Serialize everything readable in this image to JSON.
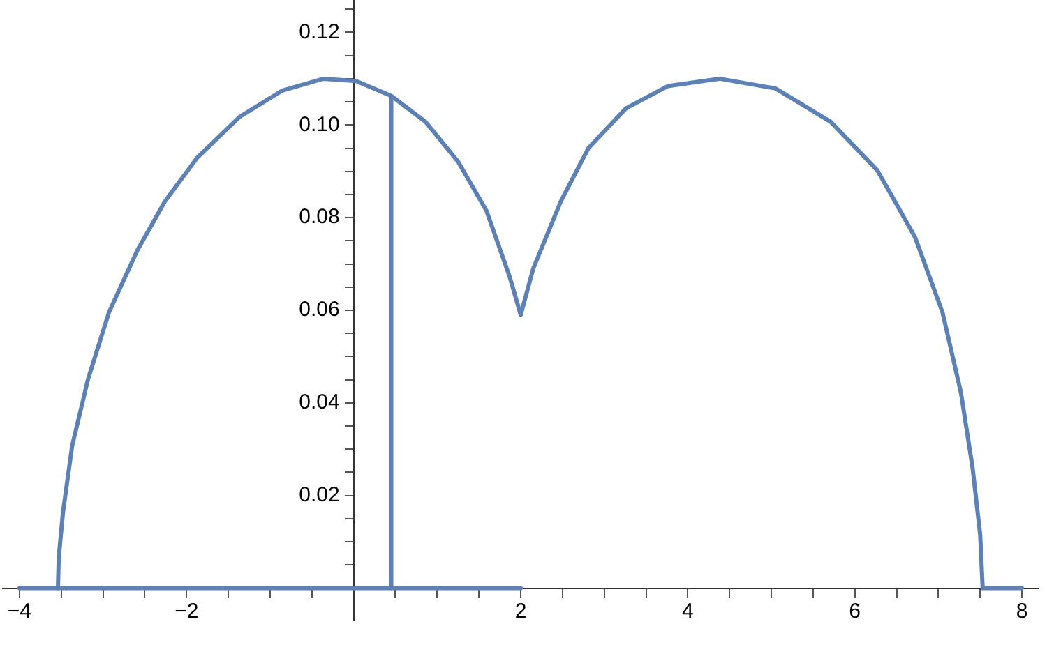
{
  "chart_data": {
    "type": "line",
    "grid": false,
    "legend": false,
    "marker": "none",
    "line_style": "solid",
    "xlim": [
      -4.2,
      8.2
    ],
    "ylim": [
      -0.007,
      0.127
    ],
    "xticks": [
      {
        "value": -4,
        "label": "−4"
      },
      {
        "value": -3.5,
        "label": null
      },
      {
        "value": -3,
        "label": null
      },
      {
        "value": -2.5,
        "label": null
      },
      {
        "value": -2,
        "label": "−2"
      },
      {
        "value": -1.5,
        "label": null
      },
      {
        "value": -1,
        "label": null
      },
      {
        "value": -0.5,
        "label": null
      },
      {
        "value": 0.5,
        "label": null
      },
      {
        "value": 1,
        "label": null
      },
      {
        "value": 1.5,
        "label": null
      },
      2,
      {
        "value": 2.5,
        "label": null
      },
      {
        "value": 3,
        "label": null
      },
      {
        "value": 3.5,
        "label": null
      },
      4,
      {
        "value": 4.5,
        "label": null
      },
      {
        "value": 5,
        "label": null
      },
      {
        "value": 5.5,
        "label": null
      },
      6,
      {
        "value": 6.5,
        "label": null
      },
      {
        "value": 7,
        "label": null
      },
      {
        "value": 7.5,
        "label": null
      },
      8
    ],
    "yticks": [
      {
        "value": 0.005,
        "label": null
      },
      {
        "value": 0.01,
        "label": null
      },
      {
        "value": 0.015,
        "label": null
      },
      0.02,
      {
        "value": 0.025,
        "label": null
      },
      {
        "value": 0.03,
        "label": null
      },
      {
        "value": 0.035,
        "label": null
      },
      0.04,
      {
        "value": 0.045,
        "label": null
      },
      {
        "value": 0.05,
        "label": null
      },
      {
        "value": 0.055,
        "label": null
      },
      0.06,
      {
        "value": 0.065,
        "label": null
      },
      {
        "value": 0.07,
        "label": null
      },
      {
        "value": 0.075,
        "label": null
      },
      0.08,
      {
        "value": 0.085,
        "label": null
      },
      {
        "value": 0.09,
        "label": null
      },
      {
        "value": 0.095,
        "label": null
      },
      {
        "value": 0.1,
        "label": "0.10"
      },
      {
        "value": 0.105,
        "label": null
      },
      {
        "value": 0.11,
        "label": null
      },
      {
        "value": 0.115,
        "label": null
      },
      0.12,
      {
        "value": 0.125,
        "label": null
      }
    ],
    "series": [
      {
        "color": "#5e81b5",
        "x": [
          -4,
          2
        ],
        "values": [
          0,
          0
        ]
      },
      {
        "color": "#5e81b5",
        "x": [
          0.45,
          0.45
        ],
        "values": [
          0,
          0.106
        ]
      },
      {
        "color": "#5e81b5",
        "x": [
          -3.54,
          -3.53,
          -3.48,
          -3.37,
          -3.18,
          -2.93,
          -2.59,
          -2.26,
          -1.87,
          -1.37,
          -0.86,
          -0.36,
          0.03,
          0.45,
          0.86,
          1.25,
          1.59,
          1.87,
          2.0,
          2.15,
          2.48,
          2.81,
          3.26,
          3.76,
          4.38,
          5.05,
          5.71,
          6.27,
          6.72,
          7.05,
          7.27,
          7.41,
          7.5,
          7.53,
          8
        ],
        "values": [
          0,
          0.0067,
          0.0163,
          0.0307,
          0.0451,
          0.0595,
          0.0729,
          0.0835,
          0.093,
          0.1017,
          0.1074,
          0.11,
          0.1095,
          0.1063,
          0.1007,
          0.0921,
          0.0815,
          0.0671,
          0.059,
          0.069,
          0.0835,
          0.095,
          0.1036,
          0.1084,
          0.11,
          0.1079,
          0.1007,
          0.0902,
          0.0758,
          0.0595,
          0.0422,
          0.0259,
          0.0115,
          0,
          0
        ]
      }
    ]
  }
}
